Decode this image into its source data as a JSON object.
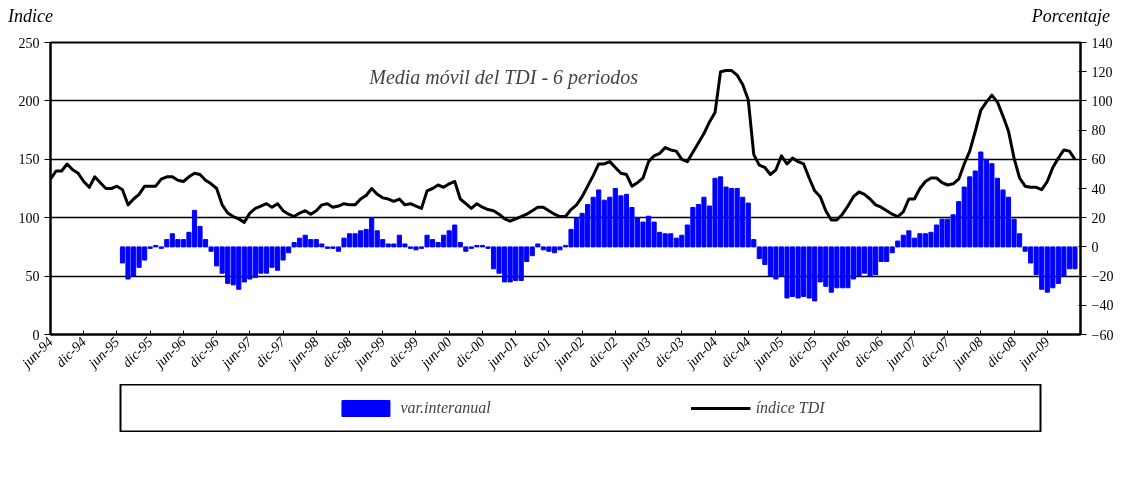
{
  "chart_data": {
    "type": "bar",
    "title": "Media móvil del TDI - 6 periodos",
    "ylabel": "Indice",
    "y2label": "Porcentaje",
    "x": [
      "1994-06",
      "1994-07",
      "1994-08",
      "1994-09",
      "1994-10",
      "1994-11",
      "1994-12",
      "1995-01",
      "1995-02",
      "1995-03",
      "1995-04",
      "1995-05",
      "1995-06",
      "1995-07",
      "1995-08",
      "1995-09",
      "1995-10",
      "1995-11",
      "1995-12",
      "1996-01",
      "1996-02",
      "1996-03",
      "1996-04",
      "1996-05",
      "1996-06",
      "1996-07",
      "1996-08",
      "1996-09",
      "1996-10",
      "1996-11",
      "1996-12",
      "1997-01",
      "1997-02",
      "1997-03",
      "1997-04",
      "1997-05",
      "1997-06",
      "1997-07",
      "1997-08",
      "1997-09",
      "1997-10",
      "1997-11",
      "1997-12",
      "1998-01",
      "1998-02",
      "1998-03",
      "1998-04",
      "1998-05",
      "1998-06",
      "1998-07",
      "1998-08",
      "1998-09",
      "1998-10",
      "1998-11",
      "1998-12",
      "1999-01",
      "1999-02",
      "1999-03",
      "1999-04",
      "1999-05",
      "1999-06",
      "1999-07",
      "1999-08",
      "1999-09",
      "1999-10",
      "1999-11",
      "1999-12",
      "2000-01",
      "2000-02",
      "2000-03",
      "2000-04",
      "2000-05",
      "2000-06",
      "2000-07",
      "2000-08",
      "2000-09",
      "2000-10",
      "2000-11",
      "2000-12",
      "2001-01",
      "2001-02",
      "2001-03",
      "2001-04",
      "2001-05",
      "2001-06",
      "2001-07",
      "2001-08",
      "2001-09",
      "2001-10",
      "2001-11",
      "2001-12",
      "2002-01",
      "2002-02",
      "2002-03",
      "2002-04",
      "2002-05",
      "2002-06",
      "2002-07",
      "2002-08",
      "2002-09",
      "2002-10",
      "2002-11",
      "2002-12",
      "2003-01",
      "2003-02",
      "2003-03",
      "2003-04",
      "2003-05",
      "2003-06",
      "2003-07",
      "2003-08",
      "2003-09",
      "2003-10",
      "2003-11",
      "2003-12",
      "2004-01",
      "2004-02",
      "2004-03",
      "2004-04",
      "2004-05",
      "2004-06",
      "2004-07",
      "2004-08",
      "2004-09",
      "2004-10",
      "2004-11",
      "2004-12",
      "2005-01",
      "2005-02",
      "2005-03",
      "2005-04",
      "2005-05",
      "2005-06",
      "2005-07",
      "2005-08",
      "2005-09",
      "2005-10",
      "2005-11",
      "2005-12",
      "2006-01",
      "2006-02",
      "2006-03",
      "2006-04",
      "2006-05",
      "2006-06",
      "2006-07",
      "2006-08",
      "2006-09",
      "2006-10",
      "2006-11",
      "2006-12",
      "2007-01",
      "2007-02",
      "2007-03",
      "2007-04",
      "2007-05",
      "2007-06",
      "2007-07",
      "2007-08",
      "2007-09",
      "2007-10",
      "2007-11",
      "2007-12",
      "2008-01",
      "2008-02",
      "2008-03",
      "2008-04",
      "2008-05",
      "2008-06",
      "2008-07",
      "2008-08",
      "2008-09",
      "2008-10",
      "2008-11",
      "2008-12",
      "2009-01",
      "2009-02",
      "2009-03",
      "2009-04",
      "2009-05",
      "2009-06",
      "2009-07",
      "2009-08",
      "2009-09",
      "2009-10",
      "2009-11"
    ],
    "series": [
      {
        "name": "var.interanual",
        "axis": "y2",
        "color": "#0000ff",
        "values": [
          null,
          null,
          null,
          null,
          null,
          null,
          null,
          null,
          null,
          null,
          null,
          null,
          null,
          -11,
          -22,
          -20,
          -14,
          -9,
          -1,
          1,
          -1,
          5,
          9,
          5,
          5,
          10,
          25,
          14,
          5,
          -3,
          -13,
          -18,
          -25,
          -26,
          -29,
          -24,
          -22,
          -21,
          -18,
          -18,
          -14,
          -16,
          -9,
          -4,
          3,
          6,
          8,
          5,
          5,
          2,
          -1,
          -1,
          -3,
          6,
          9,
          9,
          11,
          12,
          20,
          11,
          5,
          2,
          2,
          8,
          2,
          -1,
          -2,
          -1,
          8,
          5,
          3,
          8,
          11,
          15,
          3,
          -3,
          -1,
          1,
          1,
          -1,
          -15,
          -18,
          -24,
          -24,
          -23,
          -23,
          -10,
          -6,
          2,
          -2,
          -3,
          -4,
          -2,
          1,
          12,
          20,
          23,
          29,
          34,
          39,
          32,
          34,
          40,
          35,
          36,
          27,
          20,
          17,
          21,
          17,
          10,
          9,
          9,
          6,
          8,
          15,
          27,
          29,
          34,
          28,
          47,
          48,
          41,
          40,
          40,
          34,
          30,
          5,
          -8,
          -12,
          -20,
          -22,
          -20,
          -35,
          -34,
          -35,
          -34,
          -35,
          -37,
          -24,
          -27,
          -31,
          -28,
          -28,
          -28,
          -22,
          -20,
          -18,
          -20,
          -19,
          -10,
          -10,
          -4,
          4,
          8,
          11,
          6,
          9,
          9,
          10,
          15,
          19,
          19,
          22,
          31,
          41,
          48,
          52,
          65,
          60,
          57,
          47,
          39,
          34,
          19,
          9,
          -3,
          -11,
          -19,
          -29,
          -31,
          -28,
          -25,
          -20,
          -15,
          -15
        ]
      },
      {
        "name": "índice TDI",
        "type": "line",
        "color": "#000000",
        "values": [
          133,
          140,
          140,
          146,
          141,
          138,
          131,
          126,
          135,
          130,
          125,
          125,
          127,
          124,
          111,
          116,
          120,
          127,
          127,
          127,
          133,
          135,
          135,
          132,
          131,
          135,
          138,
          137,
          132,
          129,
          125,
          111,
          104,
          101,
          99,
          96,
          104,
          108,
          110,
          112,
          109,
          112,
          106,
          103,
          101,
          104,
          106,
          103,
          106,
          111,
          112,
          109,
          110,
          112,
          111,
          111,
          116,
          119,
          125,
          120,
          117,
          116,
          114,
          116,
          111,
          112,
          110,
          108,
          123,
          125,
          128,
          126,
          129,
          131,
          116,
          112,
          108,
          112,
          109,
          107,
          106,
          103,
          99,
          97,
          99,
          101,
          103,
          106,
          109,
          109,
          106,
          103,
          101,
          101,
          107,
          111,
          118,
          127,
          136,
          146,
          146,
          148,
          143,
          138,
          137,
          127,
          130,
          134,
          148,
          153,
          155,
          160,
          158,
          157,
          150,
          148,
          156,
          164,
          172,
          182,
          190,
          225,
          226,
          226,
          222,
          214,
          201,
          154,
          145,
          143,
          137,
          141,
          153,
          146,
          151,
          148,
          146,
          134,
          123,
          118,
          106,
          98,
          98,
          103,
          110,
          118,
          122,
          120,
          116,
          111,
          109,
          106,
          103,
          101,
          105,
          116,
          116,
          125,
          131,
          134,
          134,
          130,
          128,
          129,
          133,
          146,
          157,
          174,
          192,
          199,
          205,
          199,
          187,
          174,
          151,
          134,
          127,
          126,
          126,
          124,
          131,
          143,
          151,
          158,
          157,
          150
        ]
      }
    ],
    "xlim": [
      "1994-06",
      "2009-12"
    ],
    "xticks": [
      {
        "value": "1994-06",
        "label": "jun-94"
      },
      {
        "value": "1994-12",
        "label": "dic-94"
      },
      {
        "value": "1995-06",
        "label": "jun-95"
      },
      {
        "value": "1995-12",
        "label": "dic-95"
      },
      {
        "value": "1996-06",
        "label": "jun-96"
      },
      {
        "value": "1996-12",
        "label": "dic-96"
      },
      {
        "value": "1997-06",
        "label": "jun-97"
      },
      {
        "value": "1997-12",
        "label": "dic-97"
      },
      {
        "value": "1998-06",
        "label": "jun-98"
      },
      {
        "value": "1998-12",
        "label": "dic-98"
      },
      {
        "value": "1999-06",
        "label": "jun-99"
      },
      {
        "value": "1999-12",
        "label": "dic-99"
      },
      {
        "value": "2000-06",
        "label": "jun-00"
      },
      {
        "value": "2000-12",
        "label": "dic-00"
      },
      {
        "value": "2001-06",
        "label": "jun-01"
      },
      {
        "value": "2001-12",
        "label": "dic-01"
      },
      {
        "value": "2002-06",
        "label": "jun-02"
      },
      {
        "value": "2002-12",
        "label": "dic-02"
      },
      {
        "value": "2003-06",
        "label": "jun-03"
      },
      {
        "value": "2003-12",
        "label": "dic-03"
      },
      {
        "value": "2004-06",
        "label": "jun-04"
      },
      {
        "value": "2004-12",
        "label": "dic-04"
      },
      {
        "value": "2005-06",
        "label": "jun-05"
      },
      {
        "value": "2005-12",
        "label": "dic-05"
      },
      {
        "value": "2006-06",
        "label": "jun-06"
      },
      {
        "value": "2006-12",
        "label": "dic-06"
      },
      {
        "value": "2007-06",
        "label": "jun-07"
      },
      {
        "value": "2007-12",
        "label": "dic-07"
      },
      {
        "value": "2008-06",
        "label": "jun-08"
      },
      {
        "value": "2008-12",
        "label": "dic-08"
      },
      {
        "value": "2009-06",
        "label": "jun-09"
      },
      {
        "value": "2009-12",
        "label": null
      }
    ],
    "ylim": [
      0,
      250
    ],
    "yticks": [
      0,
      50,
      100,
      150,
      200,
      250
    ],
    "y2lim": [
      -60,
      140
    ],
    "y2ticks": [
      -60,
      -40,
      -20,
      0,
      20,
      40,
      60,
      80,
      100,
      120,
      140
    ],
    "grid": "y",
    "legend": "bottom"
  }
}
